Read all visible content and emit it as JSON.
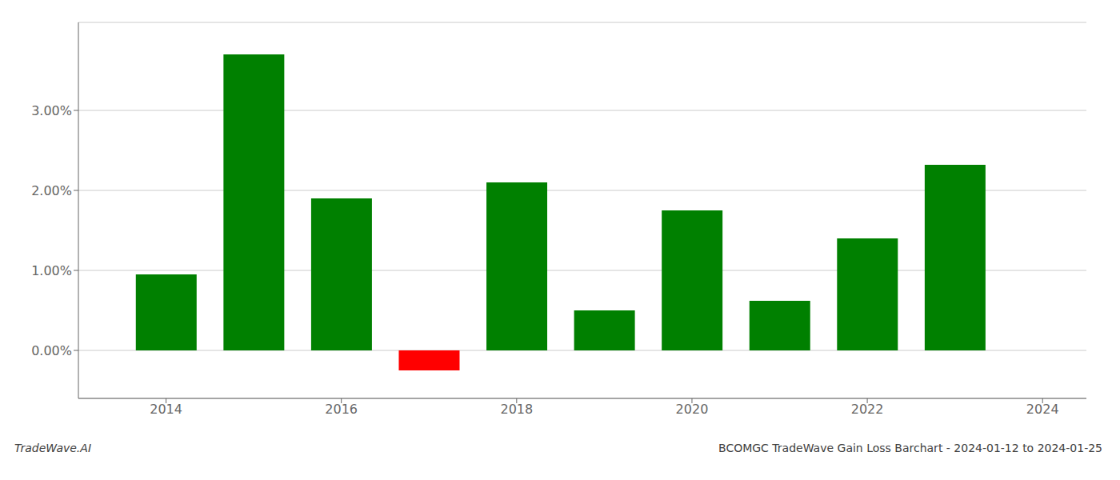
{
  "chart_data": {
    "type": "bar",
    "title": "BCOMGC TradeWave Gain Loss Barchart - 2024-01-12 to 2024-01-25",
    "annotations": [
      "TradeWave.AI"
    ],
    "x": [
      2014,
      2015,
      2016,
      2017,
      2018,
      2019,
      2020,
      2021,
      2022,
      2023
    ],
    "values": [
      0.0095,
      0.037,
      0.019,
      -0.0025,
      0.021,
      0.005,
      0.0175,
      0.0062,
      0.014,
      0.0232
    ],
    "colors": [
      "#008000",
      "#008000",
      "#008000",
      "#ff0000",
      "#008000",
      "#008000",
      "#008000",
      "#008000",
      "#008000",
      "#008000"
    ],
    "xlim": [
      2013.0,
      2024.5
    ],
    "ylim": [
      -0.006,
      0.041
    ],
    "xticks": [
      2014,
      2016,
      2018,
      2020,
      2022,
      2024
    ],
    "yticks": [
      {
        "value": 0.0,
        "label": "0.00%"
      },
      {
        "value": 0.01,
        "label": "1.00%"
      },
      {
        "value": 0.02,
        "label": "2.00%"
      },
      {
        "value": 0.03,
        "label": "3.00%"
      }
    ],
    "grid": true
  }
}
